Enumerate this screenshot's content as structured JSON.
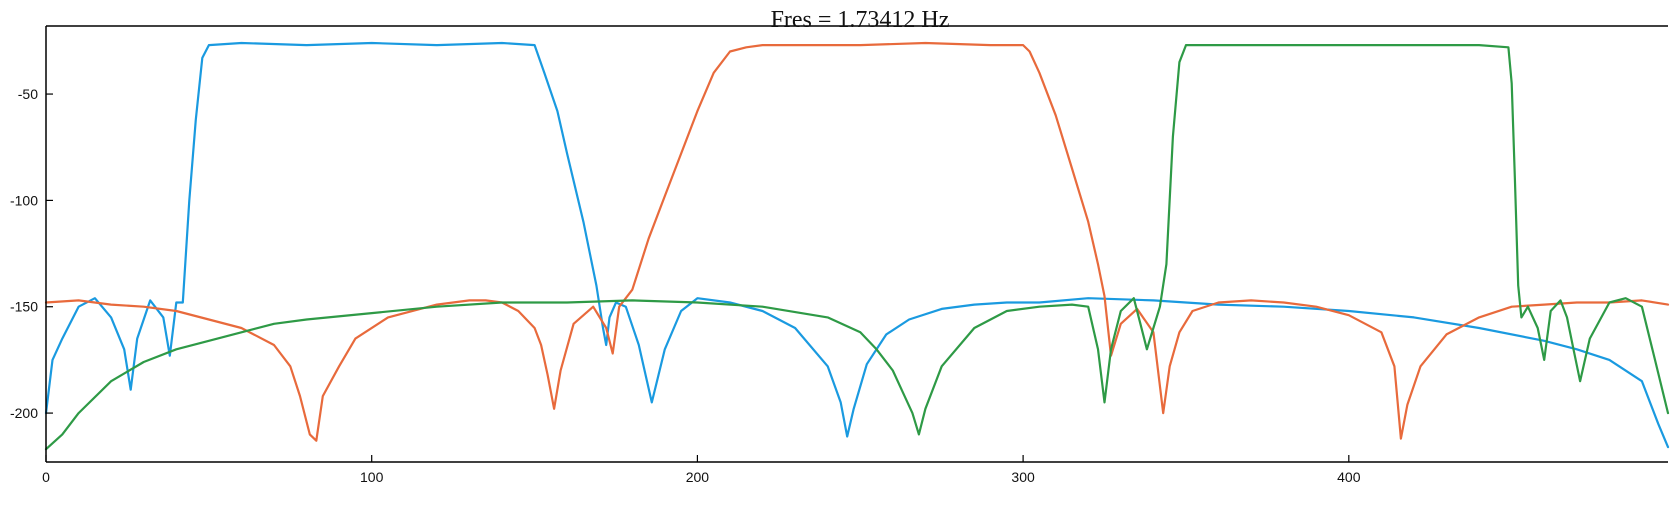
{
  "chart_data": {
    "type": "line",
    "title": "Fres = 1.73412 Hz",
    "xlabel": "",
    "ylabel": "",
    "xlim": [
      0,
      498
    ],
    "ylim": [
      -223,
      -18
    ],
    "x_ticks": [
      0,
      100,
      200,
      300,
      400
    ],
    "x_tick_labels": [
      "0",
      "100",
      "200",
      "300",
      "400"
    ],
    "y_ticks": [
      -50,
      -100,
      -150,
      -200
    ],
    "y_tick_labels": [
      "-50",
      "-100",
      "-150",
      "-200"
    ],
    "grid": false,
    "legend": "none",
    "series": [
      {
        "color": "#1a9ae0",
        "x": [
          0,
          2,
          5,
          10,
          15,
          20,
          24,
          26,
          28,
          32,
          36,
          38,
          40,
          42,
          44,
          46,
          48,
          50,
          60,
          80,
          100,
          120,
          140,
          150,
          153,
          157,
          160,
          165,
          169,
          171,
          172,
          173,
          175,
          178,
          182,
          186,
          190,
          195,
          200,
          210,
          220,
          230,
          240,
          244,
          246,
          248,
          252,
          258,
          265,
          275,
          285,
          295,
          305,
          320,
          340,
          360,
          380,
          400,
          420,
          440,
          460,
          470,
          480,
          490,
          495,
          498
        ],
        "y": [
          -200,
          -175,
          -165,
          -150,
          -146,
          -155,
          -170,
          -189,
          -165,
          -147,
          -155,
          -173,
          -148,
          -148,
          -100,
          -62,
          -33,
          -27,
          -26,
          -27,
          -26,
          -27,
          -26,
          -27,
          -40,
          -58,
          -78,
          -110,
          -140,
          -160,
          -168,
          -155,
          -148,
          -150,
          -168,
          -195,
          -170,
          -152,
          -146,
          -148,
          -152,
          -160,
          -178,
          -195,
          -211,
          -198,
          -177,
          -163,
          -156,
          -151,
          -149,
          -148,
          -148,
          -146,
          -147,
          -149,
          -150,
          -152,
          -155,
          -160,
          -166,
          -170,
          -175,
          -185,
          -205,
          -216
        ]
      },
      {
        "color": "#e86a3c",
        "x": [
          0,
          10,
          20,
          30,
          40,
          50,
          60,
          70,
          75,
          78,
          81,
          83,
          85,
          90,
          95,
          105,
          120,
          130,
          135,
          140,
          145,
          150,
          152,
          154,
          156,
          158,
          162,
          168,
          172,
          174,
          176,
          180,
          185,
          190,
          195,
          200,
          205,
          210,
          215,
          220,
          230,
          250,
          270,
          290,
          300,
          302,
          305,
          310,
          315,
          320,
          323,
          325,
          327,
          330,
          335,
          340,
          343,
          345,
          348,
          352,
          360,
          370,
          380,
          390,
          400,
          410,
          414,
          416,
          418,
          422,
          430,
          440,
          450,
          460,
          470,
          480,
          490,
          498
        ],
        "y": [
          -148,
          -147,
          -149,
          -150,
          -152,
          -156,
          -160,
          -168,
          -178,
          -192,
          -210,
          -213,
          -192,
          -178,
          -165,
          -155,
          -149,
          -147,
          -147,
          -148,
          -152,
          -160,
          -168,
          -182,
          -198,
          -180,
          -158,
          -150,
          -160,
          -172,
          -150,
          -142,
          -118,
          -98,
          -78,
          -58,
          -40,
          -30,
          -28,
          -27,
          -27,
          -27,
          -26,
          -27,
          -27,
          -30,
          -40,
          -60,
          -85,
          -110,
          -130,
          -145,
          -173,
          -158,
          -151,
          -162,
          -200,
          -178,
          -162,
          -152,
          -148,
          -147,
          -148,
          -150,
          -154,
          -162,
          -178,
          -212,
          -196,
          -178,
          -163,
          -155,
          -150,
          -149,
          -148,
          -148,
          -147,
          -149
        ]
      },
      {
        "color": "#2e9a46",
        "x": [
          0,
          5,
          10,
          20,
          30,
          40,
          50,
          60,
          70,
          80,
          100,
          120,
          140,
          160,
          180,
          200,
          220,
          240,
          250,
          255,
          260,
          263,
          266,
          268,
          270,
          275,
          285,
          295,
          305,
          315,
          320,
          323,
          325,
          327,
          330,
          334,
          336,
          338,
          340,
          342,
          344,
          346,
          348,
          350,
          360,
          380,
          400,
          420,
          440,
          449,
          450,
          451,
          452,
          453,
          455,
          458,
          460,
          462,
          465,
          467,
          469,
          471,
          474,
          480,
          485,
          490,
          494,
          498
        ],
        "y": [
          -217,
          -210,
          -200,
          -185,
          -176,
          -170,
          -166,
          -162,
          -158,
          -156,
          -153,
          -150,
          -148,
          -148,
          -147,
          -148,
          -150,
          -155,
          -162,
          -170,
          -180,
          -190,
          -200,
          -210,
          -198,
          -178,
          -160,
          -152,
          -150,
          -149,
          -150,
          -170,
          -195,
          -170,
          -152,
          -146,
          -158,
          -170,
          -160,
          -150,
          -130,
          -70,
          -35,
          -27,
          -27,
          -27,
          -27,
          -27,
          -27,
          -28,
          -45,
          -90,
          -140,
          -155,
          -150,
          -160,
          -175,
          -152,
          -147,
          -155,
          -170,
          -185,
          -165,
          -148,
          -146,
          -150,
          -175,
          -200
        ]
      }
    ]
  }
}
